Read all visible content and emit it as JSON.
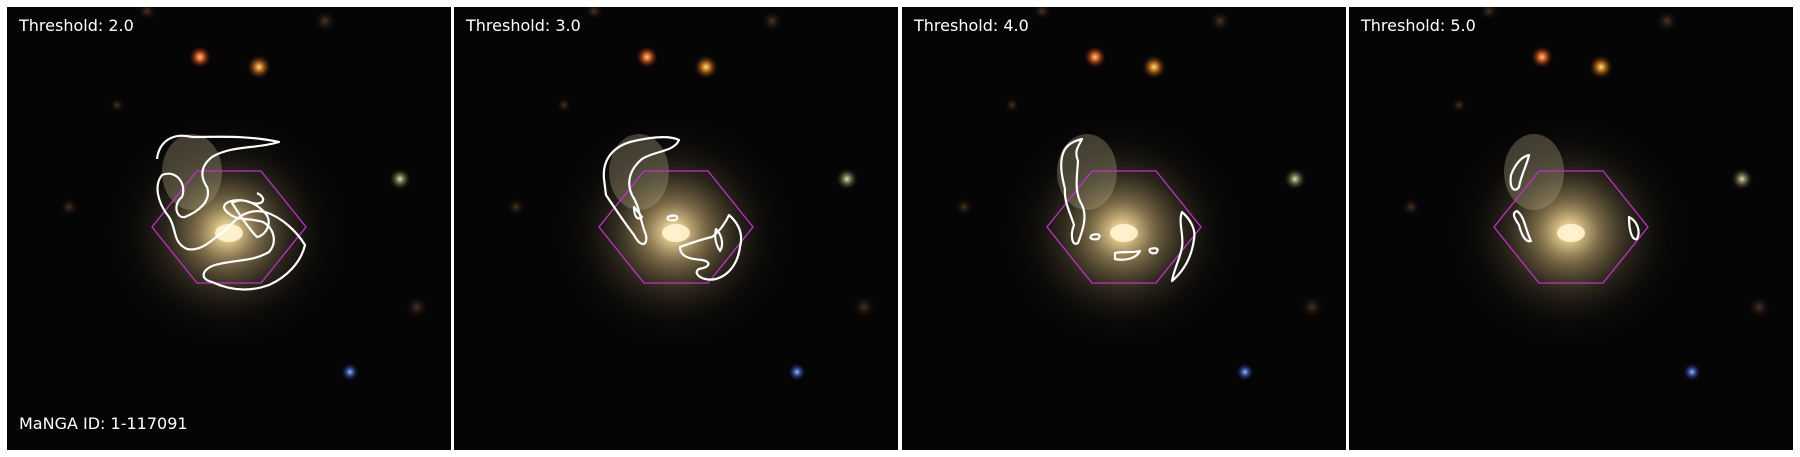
{
  "manga_id": "MaNGA ID: 1-117091",
  "panels": [
    {
      "threshold": "Threshold: 2.0"
    },
    {
      "threshold": "Threshold: 3.0"
    },
    {
      "threshold": "Threshold: 4.0"
    },
    {
      "threshold": "Threshold: 5.0"
    }
  ],
  "colors": {
    "background": "#050506",
    "contour": "#ffffff",
    "hexagon": "#c030c8",
    "galaxy_core": "#fff2c8",
    "galaxy_halo": "#b49a64"
  },
  "icons": [
    "galaxy-image",
    "contour-outline",
    "ifu-hexagon-outline"
  ]
}
